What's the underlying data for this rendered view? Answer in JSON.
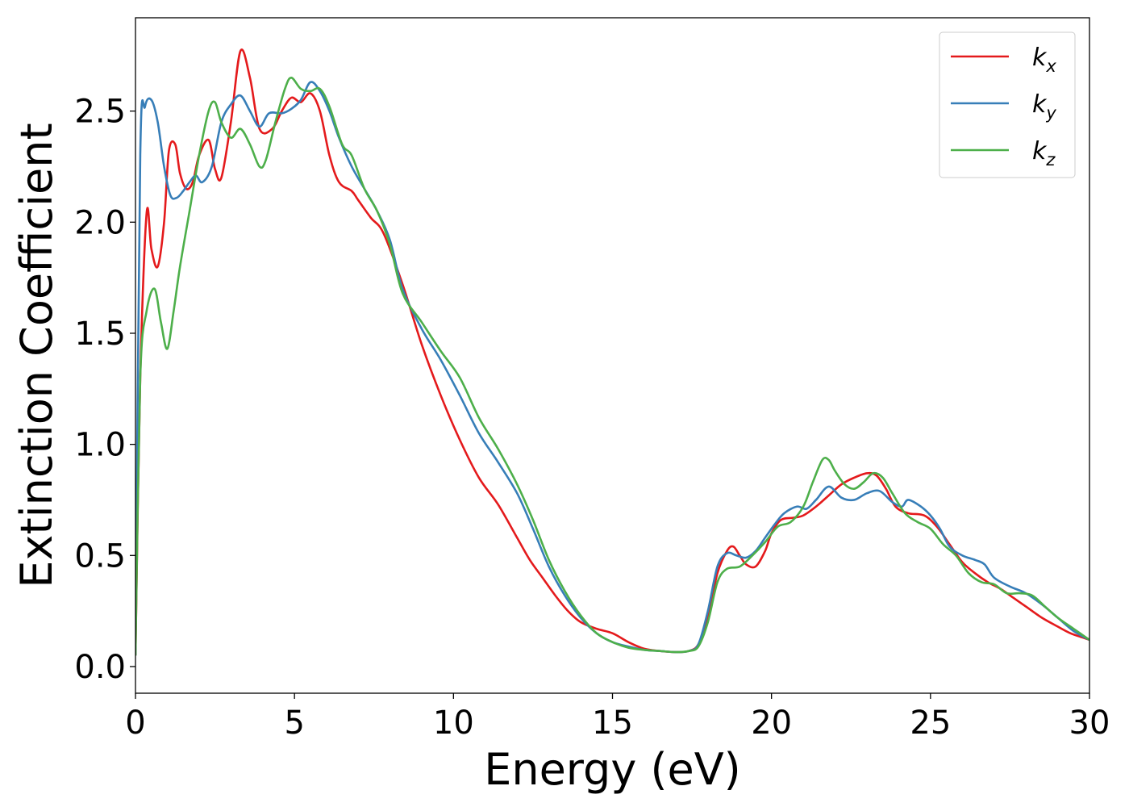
{
  "chart_data": {
    "type": "line",
    "xlabel": "Energy (eV)",
    "ylabel": "Extinction Coefficient",
    "xlim": [
      0,
      30
    ],
    "ylim": [
      -0.12,
      2.92
    ],
    "xticks": [
      0,
      5,
      10,
      15,
      20,
      25,
      30
    ],
    "xtick_labels": [
      "0",
      "5",
      "10",
      "15",
      "20",
      "25",
      "30"
    ],
    "yticks": [
      0.0,
      0.5,
      1.0,
      1.5,
      2.0,
      2.5
    ],
    "ytick_labels": [
      "0.0",
      "0.5",
      "1.0",
      "1.5",
      "2.0",
      "2.5"
    ],
    "grid": false,
    "legend_position": "top-right",
    "series": [
      {
        "name": "k_x",
        "label_base": "k",
        "label_sub": "x",
        "color": "#e41a1c",
        "x": [
          0.0,
          0.15,
          0.35,
          0.5,
          0.7,
          0.9,
          1.05,
          1.25,
          1.4,
          1.6,
          1.8,
          2.0,
          2.3,
          2.5,
          2.7,
          3.0,
          3.3,
          3.6,
          3.9,
          4.3,
          4.6,
          4.9,
          5.2,
          5.5,
          5.8,
          6.1,
          6.4,
          6.8,
          7.0,
          7.4,
          7.8,
          8.4,
          9.0,
          9.6,
          10.2,
          10.8,
          11.4,
          12.0,
          12.4,
          12.8,
          13.2,
          13.6,
          14.0,
          14.5,
          15.0,
          15.5,
          16.0,
          16.5,
          17.0,
          17.4,
          17.7,
          18.0,
          18.3,
          18.6,
          18.8,
          19.0,
          19.2,
          19.5,
          19.8,
          20.0,
          20.3,
          20.7,
          21.0,
          21.4,
          21.8,
          22.2,
          22.6,
          23.0,
          23.3,
          23.6,
          23.9,
          24.3,
          24.8,
          25.2,
          25.6,
          26.0,
          26.4,
          26.8,
          27.2,
          27.6,
          28.0,
          28.5,
          29.0,
          29.4,
          29.8,
          30.0
        ],
        "y": [
          0.05,
          1.3,
          2.04,
          1.88,
          1.8,
          2.0,
          2.32,
          2.35,
          2.22,
          2.15,
          2.18,
          2.3,
          2.37,
          2.24,
          2.2,
          2.45,
          2.77,
          2.65,
          2.42,
          2.42,
          2.5,
          2.56,
          2.54,
          2.58,
          2.5,
          2.3,
          2.18,
          2.14,
          2.1,
          2.02,
          1.95,
          1.72,
          1.45,
          1.22,
          1.02,
          0.85,
          0.73,
          0.58,
          0.48,
          0.4,
          0.32,
          0.25,
          0.2,
          0.17,
          0.15,
          0.11,
          0.08,
          0.07,
          0.065,
          0.07,
          0.1,
          0.22,
          0.42,
          0.52,
          0.54,
          0.5,
          0.46,
          0.45,
          0.52,
          0.6,
          0.66,
          0.67,
          0.68,
          0.72,
          0.77,
          0.82,
          0.85,
          0.87,
          0.86,
          0.8,
          0.72,
          0.69,
          0.68,
          0.63,
          0.55,
          0.47,
          0.42,
          0.38,
          0.35,
          0.31,
          0.27,
          0.22,
          0.18,
          0.15,
          0.13,
          0.12
        ]
      },
      {
        "name": "k_y",
        "label_base": "k",
        "label_sub": "y",
        "color": "#377eb8",
        "x": [
          0.0,
          0.15,
          0.3,
          0.5,
          0.7,
          0.9,
          1.1,
          1.3,
          1.5,
          1.7,
          1.9,
          2.1,
          2.4,
          2.7,
          3.0,
          3.3,
          3.6,
          3.9,
          4.2,
          4.6,
          4.9,
          5.2,
          5.5,
          5.8,
          6.1,
          6.4,
          6.8,
          7.2,
          7.6,
          8.0,
          8.4,
          9.0,
          9.6,
          10.2,
          10.8,
          11.4,
          12.0,
          12.5,
          13.0,
          13.5,
          14.0,
          14.5,
          15.0,
          15.5,
          16.0,
          16.5,
          17.0,
          17.4,
          17.7,
          18.0,
          18.3,
          18.6,
          18.9,
          19.2,
          19.5,
          19.8,
          20.1,
          20.4,
          20.8,
          21.1,
          21.4,
          21.8,
          22.2,
          22.6,
          23.0,
          23.4,
          23.8,
          24.1,
          24.3,
          24.7,
          25.0,
          25.3,
          25.6,
          26.0,
          26.4,
          26.7,
          27.0,
          27.5,
          28.0,
          28.5,
          29.0,
          29.5,
          30.0
        ],
        "y": [
          0.05,
          2.3,
          2.52,
          2.55,
          2.45,
          2.25,
          2.12,
          2.11,
          2.14,
          2.18,
          2.21,
          2.18,
          2.25,
          2.45,
          2.53,
          2.57,
          2.5,
          2.43,
          2.49,
          2.49,
          2.51,
          2.55,
          2.63,
          2.59,
          2.5,
          2.38,
          2.25,
          2.15,
          2.05,
          1.92,
          1.7,
          1.52,
          1.38,
          1.22,
          1.05,
          0.92,
          0.78,
          0.62,
          0.45,
          0.32,
          0.22,
          0.15,
          0.11,
          0.09,
          0.075,
          0.07,
          0.065,
          0.07,
          0.1,
          0.25,
          0.45,
          0.51,
          0.5,
          0.49,
          0.52,
          0.58,
          0.64,
          0.69,
          0.72,
          0.71,
          0.75,
          0.81,
          0.76,
          0.75,
          0.78,
          0.79,
          0.74,
          0.72,
          0.75,
          0.72,
          0.68,
          0.62,
          0.54,
          0.5,
          0.48,
          0.46,
          0.4,
          0.36,
          0.33,
          0.28,
          0.22,
          0.16,
          0.12
        ]
      },
      {
        "name": "k_z",
        "label_base": "k",
        "label_sub": "z",
        "color": "#4daf4a",
        "x": [
          0.0,
          0.15,
          0.35,
          0.6,
          0.8,
          1.0,
          1.2,
          1.4,
          1.7,
          2.0,
          2.3,
          2.5,
          2.7,
          3.0,
          3.3,
          3.6,
          3.9,
          4.1,
          4.4,
          4.7,
          4.9,
          5.2,
          5.5,
          5.8,
          6.1,
          6.5,
          6.8,
          7.2,
          7.6,
          8.0,
          8.4,
          9.0,
          9.6,
          10.2,
          10.8,
          11.4,
          12.0,
          12.5,
          13.0,
          13.5,
          14.0,
          14.5,
          15.0,
          15.5,
          16.0,
          16.5,
          17.0,
          17.4,
          17.7,
          18.0,
          18.3,
          18.6,
          19.0,
          19.4,
          19.8,
          20.2,
          20.6,
          21.0,
          21.3,
          21.6,
          21.8,
          22.0,
          22.3,
          22.6,
          22.9,
          23.2,
          23.5,
          23.8,
          24.2,
          24.6,
          25.0,
          25.4,
          25.8,
          26.2,
          26.6,
          27.0,
          27.4,
          27.8,
          28.2,
          28.6,
          29.0,
          29.5,
          30.0
        ],
        "y": [
          0.05,
          1.3,
          1.6,
          1.7,
          1.55,
          1.43,
          1.6,
          1.8,
          2.05,
          2.3,
          2.5,
          2.54,
          2.45,
          2.38,
          2.42,
          2.35,
          2.25,
          2.28,
          2.45,
          2.6,
          2.65,
          2.6,
          2.59,
          2.6,
          2.52,
          2.35,
          2.3,
          2.15,
          2.05,
          1.9,
          1.68,
          1.55,
          1.42,
          1.3,
          1.12,
          0.98,
          0.82,
          0.66,
          0.48,
          0.34,
          0.23,
          0.15,
          0.11,
          0.085,
          0.075,
          0.07,
          0.065,
          0.07,
          0.09,
          0.2,
          0.38,
          0.44,
          0.45,
          0.5,
          0.56,
          0.63,
          0.65,
          0.72,
          0.83,
          0.93,
          0.93,
          0.88,
          0.82,
          0.8,
          0.83,
          0.87,
          0.85,
          0.78,
          0.69,
          0.65,
          0.62,
          0.55,
          0.5,
          0.42,
          0.38,
          0.37,
          0.33,
          0.33,
          0.32,
          0.27,
          0.22,
          0.17,
          0.12
        ]
      }
    ]
  }
}
